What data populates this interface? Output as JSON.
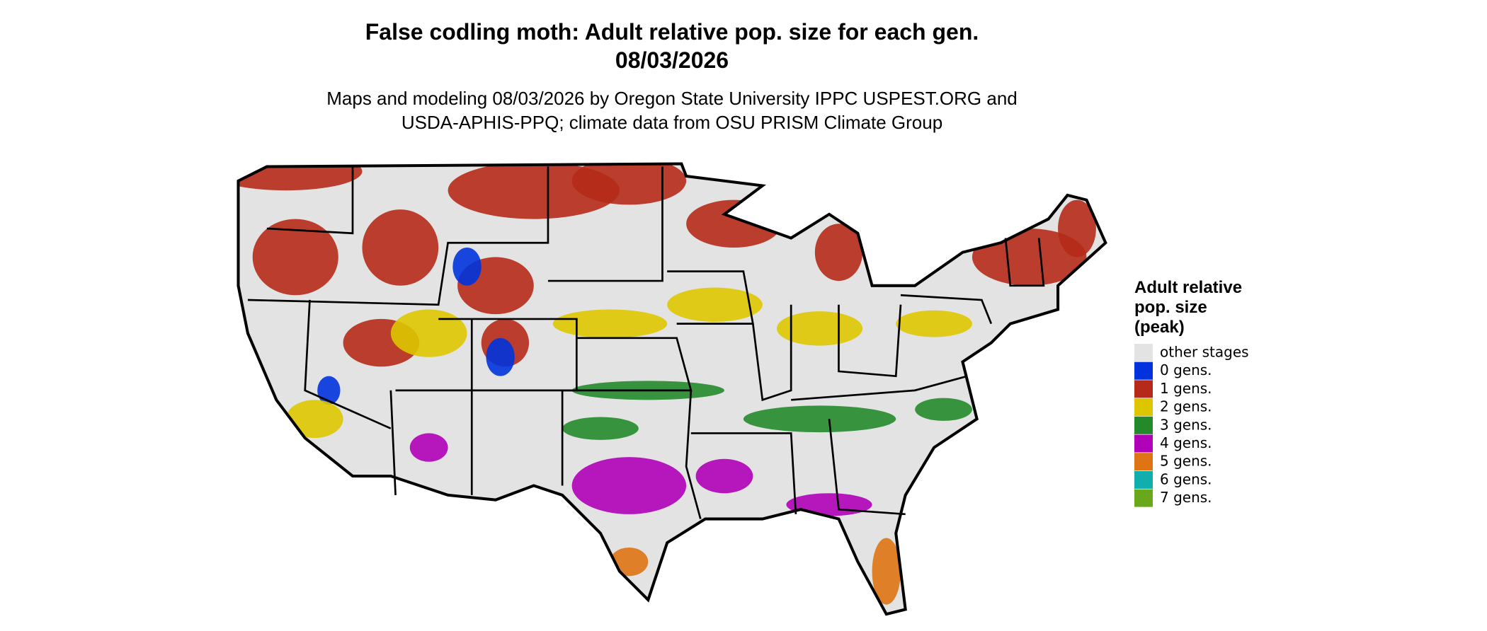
{
  "title": {
    "line1": "False codling moth: Adult relative pop. size for each gen.",
    "line2": "08/03/2026"
  },
  "subtitle": {
    "line1": "Maps and modeling 08/03/2026 by Oregon State University IPPC USPEST.ORG and",
    "line2": "USDA-APHIS-PPQ; climate data from OSU PRISM Climate Group"
  },
  "legend": {
    "title": [
      "Adult relative",
      "pop. size",
      "(peak)"
    ],
    "items": [
      {
        "label": "other stages",
        "color": "#e3e3e3"
      },
      {
        "label": "0 gens.",
        "color": "#0033dd"
      },
      {
        "label": "1 gens.",
        "color": "#b52a18"
      },
      {
        "label": "2 gens.",
        "color": "#ddc600"
      },
      {
        "label": "3 gens.",
        "color": "#23892a"
      },
      {
        "label": "4 gens.",
        "color": "#b000b8"
      },
      {
        "label": "5 gens.",
        "color": "#de7414"
      },
      {
        "label": "6 gens.",
        "color": "#12aeae"
      },
      {
        "label": "7 gens.",
        "color": "#68a81a"
      }
    ]
  }
}
